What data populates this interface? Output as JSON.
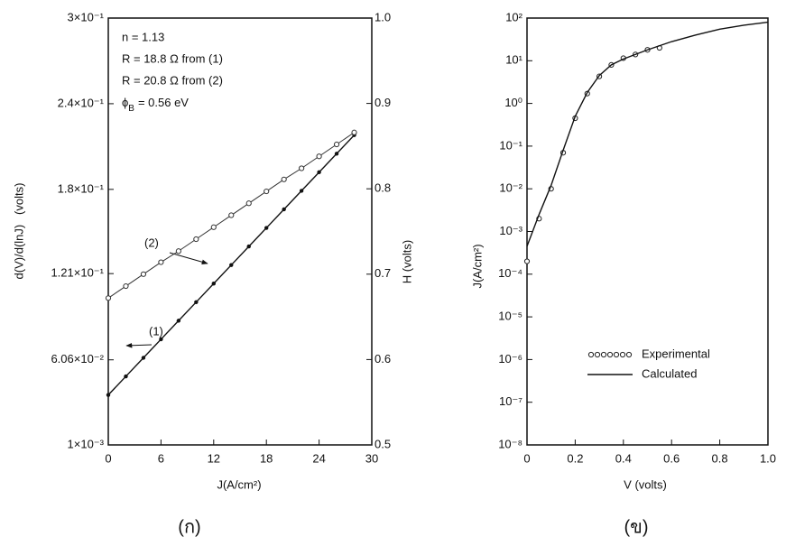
{
  "chart_data": [
    {
      "type": "line",
      "caption": "(ก)",
      "x_label": "J(A/cm²)",
      "y_label": "d(V)/d(lnJ)   (volts)",
      "y2_label": "H (volts)",
      "xlim": [
        0,
        30
      ],
      "xticks": [
        0,
        6,
        12,
        18,
        24,
        30
      ],
      "ylim": [
        0.001,
        0.3
      ],
      "yticks": [
        {
          "value": 0.001,
          "label": "1×10⁻³"
        },
        {
          "value": 0.0606,
          "label": "6.06×10⁻²"
        },
        {
          "value": 0.121,
          "label": "1.21×10⁻¹"
        },
        {
          "value": 0.18,
          "label": "1.8×10⁻¹"
        },
        {
          "value": 0.24,
          "label": "2.4×10⁻¹"
        },
        {
          "value": 0.3,
          "label": "3×10⁻¹"
        }
      ],
      "y2lim": [
        0.5,
        1.0
      ],
      "y2ticks": [
        0.5,
        0.6,
        0.7,
        0.8,
        0.9,
        {
          "value": 1.0,
          "label": "1.0"
        }
      ],
      "annotations": [
        "n = 1.13",
        "R = 18.8 Ω from (1)",
        "R = 20.8 Ω from (2)"
      ],
      "barrier_label": {
        "symbol": "ϕ",
        "subscript": "B",
        "text": "= 0.56 eV"
      },
      "series": [
        {
          "name": "(1)",
          "color": "#111111",
          "marker": "dot",
          "line": true,
          "x": [
            0,
            2,
            4,
            6,
            8,
            10,
            12,
            14,
            16,
            18,
            20,
            22,
            24,
            26,
            28
          ],
          "values": [
            0.036,
            0.049,
            0.062,
            0.075,
            0.088,
            0.101,
            0.114,
            0.127,
            0.14,
            0.153,
            0.166,
            0.179,
            0.192,
            0.205,
            0.218
          ]
        },
        {
          "name": "(2)",
          "color": "#333333",
          "marker": "circle",
          "line": true,
          "axis": "y2",
          "x": [
            0,
            2,
            4,
            6,
            8,
            10,
            12,
            14,
            16,
            18,
            20,
            22,
            24,
            26,
            28
          ],
          "values": [
            0.672,
            0.686,
            0.7,
            0.714,
            0.727,
            0.741,
            0.755,
            0.769,
            0.783,
            0.797,
            0.811,
            0.824,
            0.838,
            0.852,
            0.866
          ]
        }
      ]
    },
    {
      "type": "line",
      "caption": "(ข)",
      "yscale": "log",
      "legend": "lower right",
      "x_label": "V (volts)",
      "y_label": "J(A/cm²)",
      "xlim": [
        0,
        1
      ],
      "xticks": [
        0,
        0.2,
        0.4,
        0.6,
        0.8,
        {
          "value": 1,
          "label": "1.0"
        }
      ],
      "ylim": [
        1e-08,
        100
      ],
      "yticks": [
        {
          "value": 1e-08,
          "label": "10⁻⁸"
        },
        {
          "value": 1e-07,
          "label": "10⁻⁷"
        },
        {
          "value": 1e-06,
          "label": "10⁻⁶"
        },
        {
          "value": 1e-05,
          "label": "10⁻⁵"
        },
        {
          "value": 0.0001,
          "label": "10⁻⁴"
        },
        {
          "value": 0.001,
          "label": "10⁻³"
        },
        {
          "value": 0.01,
          "label": "10⁻²"
        },
        {
          "value": 0.1,
          "label": "10⁻¹"
        },
        {
          "value": 1,
          "label": "10⁰"
        },
        {
          "value": 10,
          "label": "10¹"
        },
        {
          "value": 100,
          "label": "10²"
        }
      ],
      "series": [
        {
          "name": "Experimental",
          "color": "#222222",
          "marker": "circle",
          "line": false,
          "x": [
            0,
            0.05,
            0.1,
            0.15,
            0.2,
            0.25,
            0.3,
            0.35,
            0.4,
            0.45,
            0.5,
            0.55
          ],
          "values": [
            0.0002,
            0.002,
            0.01,
            0.07,
            0.45,
            1.7,
            4.3,
            8,
            11.5,
            14,
            18,
            20
          ]
        },
        {
          "name": "Calculated",
          "color": "#111111",
          "marker": "none",
          "line": true,
          "x": [
            0,
            0.05,
            0.1,
            0.15,
            0.2,
            0.25,
            0.3,
            0.35,
            0.4,
            0.5,
            0.6,
            0.7,
            0.8,
            0.9,
            1
          ],
          "values": [
            0.00045,
            0.0025,
            0.012,
            0.08,
            0.5,
            1.8,
            4.5,
            8,
            11,
            18,
            28,
            40,
            55,
            68,
            80
          ]
        }
      ]
    }
  ]
}
